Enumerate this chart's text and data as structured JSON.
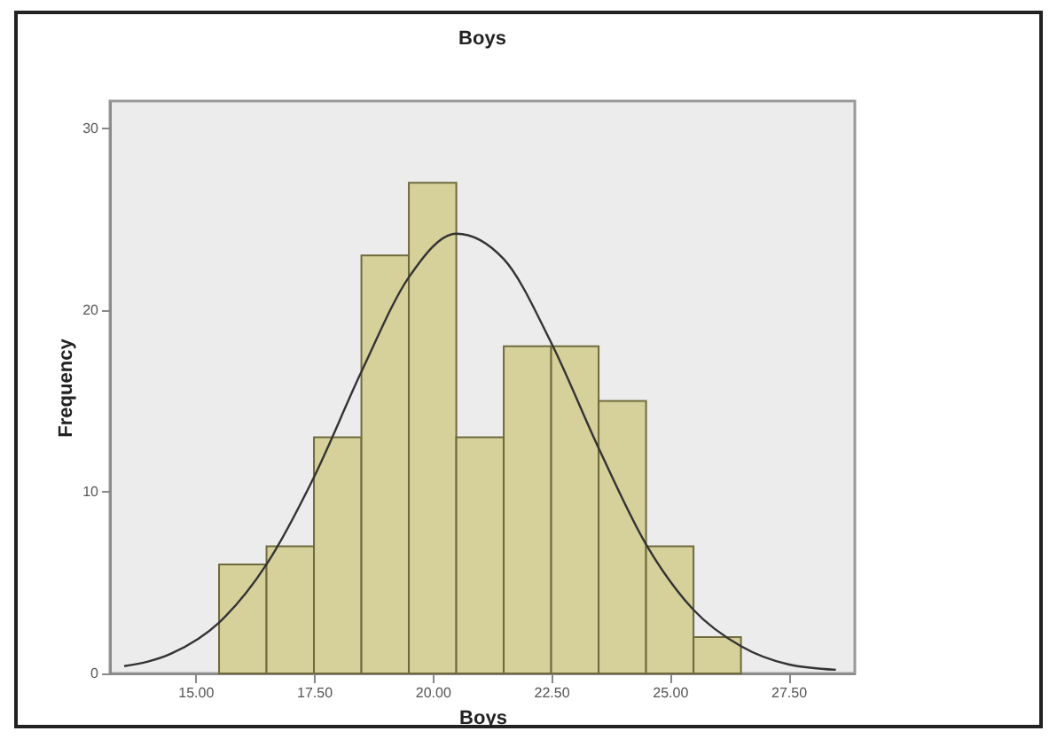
{
  "chart_data": {
    "type": "histogram",
    "title": "Boys",
    "xlabel": "Boys",
    "ylabel": "Frequency",
    "bins": [
      15.5,
      16.5,
      17.5,
      18.5,
      19.5,
      20.5,
      21.5,
      22.5,
      23.5,
      24.5,
      25.5,
      26.5
    ],
    "values": [
      6,
      7,
      13,
      23,
      27,
      13,
      18,
      18,
      15,
      7,
      2
    ],
    "color": "#d6d09a",
    "series": [
      {
        "type": "line",
        "color": "#333333",
        "x": [
          13.5,
          14.5,
          15.5,
          16.5,
          17.5,
          18.5,
          19.5,
          20.5,
          21.5,
          22.5,
          23.5,
          24.5,
          25.5,
          26.5,
          27.5,
          28.5
        ],
        "values": [
          0.4,
          1.1,
          2.8,
          6,
          10.8,
          16.6,
          21.8,
          24.2,
          22.8,
          18.2,
          12.4,
          7.1,
          3.5,
          1.5,
          0.5,
          0.2
        ]
      }
    ],
    "xlim": [
      13.2,
      28.9
    ],
    "ylim": [
      0,
      31.5
    ],
    "xticks": [
      {
        "value": 15,
        "label": "15.00"
      },
      {
        "value": 17.5,
        "label": "17.50"
      },
      {
        "value": 20,
        "label": "20.00"
      },
      {
        "value": 22.5,
        "label": "22.50"
      },
      {
        "value": 25,
        "label": "25.00"
      },
      {
        "value": 27.5,
        "label": "27.50"
      }
    ],
    "yticks": [
      0,
      10,
      20,
      30
    ],
    "grid": false
  }
}
